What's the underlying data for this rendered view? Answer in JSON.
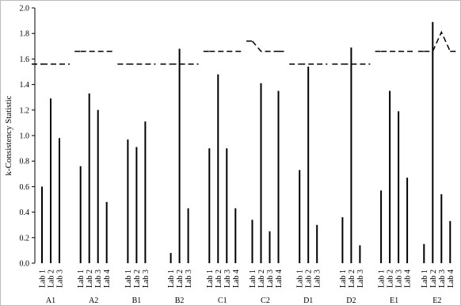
{
  "chart_data": {
    "type": "bar",
    "y_label": "k-Consistency Statistic",
    "ylim": [
      0,
      2
    ],
    "color": "#000000",
    "yticks": [
      {
        "value": 0,
        "label": "0.0"
      },
      {
        "value": 0.2,
        "label": "0.2"
      },
      {
        "value": 0.4,
        "label": "0.4"
      },
      {
        "value": 0.6,
        "label": "0.6"
      },
      {
        "value": 0.8,
        "label": "0.8"
      },
      {
        "value": 1,
        "label": "1.0"
      },
      {
        "value": 1.2,
        "label": "1.2"
      },
      {
        "value": 1.4,
        "label": "1.4"
      },
      {
        "value": 1.6,
        "label": "1.6"
      },
      {
        "value": 1.8,
        "label": "1.8"
      },
      {
        "value": 2,
        "label": "2.0"
      }
    ],
    "groups": [
      {
        "name": "A1",
        "categories": [
          "Lab 1",
          "Lab 2",
          "Lab 3"
        ],
        "values": [
          0.6,
          1.29,
          0.98
        ],
        "critical": [
          1.56,
          1.56,
          1.56
        ]
      },
      {
        "name": "A2",
        "categories": [
          "Lab 1",
          "Lab 2",
          "Lab 3",
          "Lab 4"
        ],
        "values": [
          0.76,
          1.33,
          1.2,
          0.48
        ],
        "critical": [
          1.66,
          1.66,
          1.66,
          1.66
        ]
      },
      {
        "name": "B1",
        "categories": [
          "Lab 1",
          "Lab 2",
          "Lab 3"
        ],
        "values": [
          0.97,
          0.91,
          1.11
        ],
        "critical": [
          1.56,
          1.56,
          1.56
        ]
      },
      {
        "name": "B2",
        "categories": [
          "Lab 1",
          "Lab 2",
          "Lab 3"
        ],
        "values": [
          0.08,
          1.68,
          0.43
        ],
        "critical": [
          1.56,
          1.56,
          1.56
        ]
      },
      {
        "name": "C1",
        "categories": [
          "Lab 1",
          "Lab 2",
          "Lab 3",
          "Lab 4"
        ],
        "values": [
          0.9,
          1.48,
          0.9,
          0.43
        ],
        "critical": [
          1.66,
          1.66,
          1.66,
          1.66
        ]
      },
      {
        "name": "C2",
        "categories": [
          "Lab 1",
          "Lab 2",
          "Lab 3",
          "Lab 4"
        ],
        "values": [
          0.34,
          1.41,
          0.25,
          1.35
        ],
        "critical": [
          1.74,
          1.66,
          1.66,
          1.66
        ]
      },
      {
        "name": "D1",
        "categories": [
          "Lab 1",
          "Lab 2",
          "Lab 3"
        ],
        "values": [
          0.73,
          1.54,
          0.3
        ],
        "critical": [
          1.56,
          1.56,
          1.56
        ]
      },
      {
        "name": "D2",
        "categories": [
          "Lab 1",
          "Lab 2",
          "Lab 3"
        ],
        "values": [
          0.36,
          1.69,
          0.14
        ],
        "critical": [
          1.56,
          1.56,
          1.56
        ]
      },
      {
        "name": "E1",
        "categories": [
          "Lab 1",
          "Lab 2",
          "Lab 3",
          "Lab 4"
        ],
        "values": [
          0.57,
          1.35,
          1.19,
          0.67
        ],
        "critical": [
          1.66,
          1.66,
          1.66,
          1.66
        ]
      },
      {
        "name": "E2",
        "categories": [
          "Lab 1",
          "Lab 2",
          "Lab 3",
          "Lab 4"
        ],
        "values": [
          0.15,
          1.89,
          0.54,
          0.33
        ],
        "critical": [
          1.66,
          1.66,
          1.81,
          1.66
        ]
      }
    ]
  }
}
